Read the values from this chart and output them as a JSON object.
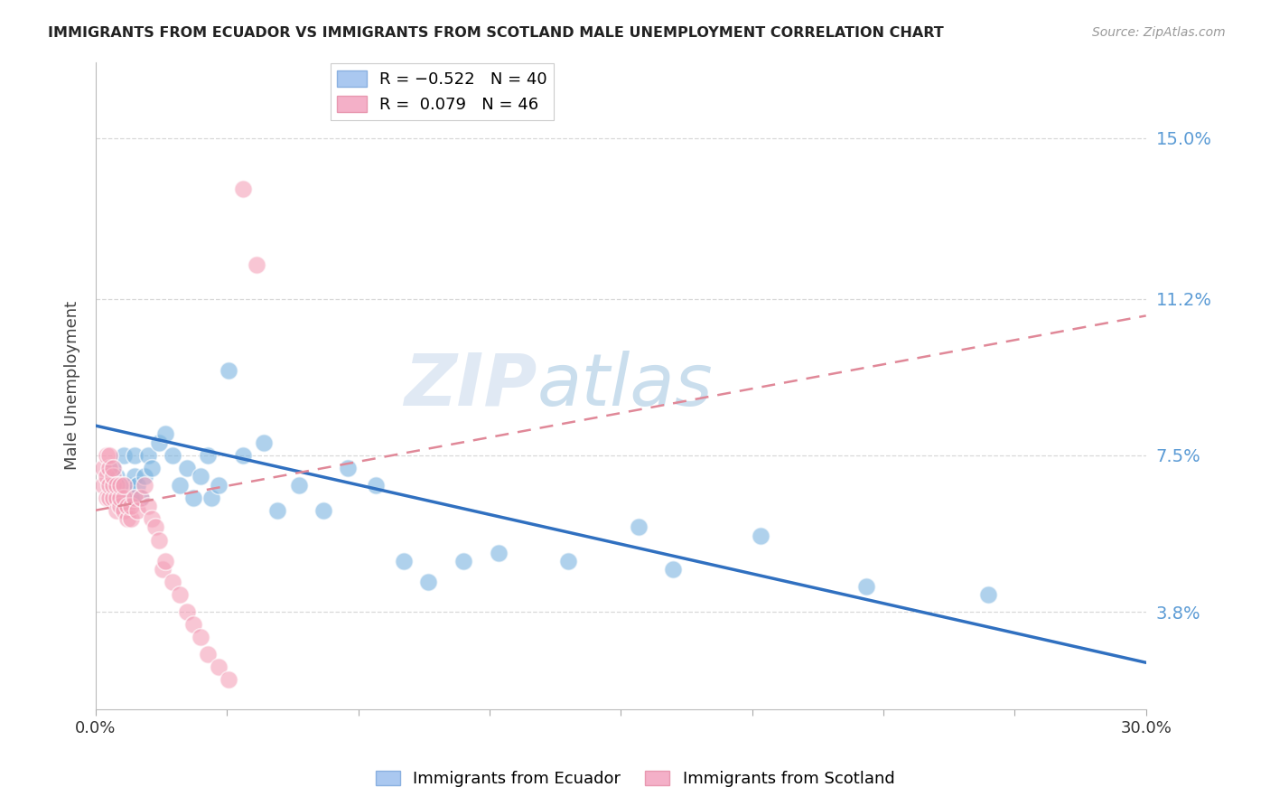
{
  "title": "IMMIGRANTS FROM ECUADOR VS IMMIGRANTS FROM SCOTLAND MALE UNEMPLOYMENT CORRELATION CHART",
  "source": "Source: ZipAtlas.com",
  "ylabel": "Male Unemployment",
  "ytick_labels": [
    "15.0%",
    "11.2%",
    "7.5%",
    "3.8%"
  ],
  "ytick_values": [
    0.15,
    0.112,
    0.075,
    0.038
  ],
  "xlim": [
    0.0,
    0.3
  ],
  "ylim": [
    0.015,
    0.168
  ],
  "ecuador_scatter_x": [
    0.005,
    0.006,
    0.008,
    0.009,
    0.01,
    0.011,
    0.011,
    0.012,
    0.013,
    0.014,
    0.015,
    0.016,
    0.018,
    0.02,
    0.022,
    0.024,
    0.026,
    0.028,
    0.03,
    0.032,
    0.033,
    0.035,
    0.038,
    0.042,
    0.048,
    0.052,
    0.058,
    0.065,
    0.072,
    0.08,
    0.088,
    0.095,
    0.105,
    0.115,
    0.135,
    0.155,
    0.165,
    0.19,
    0.22,
    0.255
  ],
  "ecuador_scatter_y": [
    0.072,
    0.07,
    0.075,
    0.068,
    0.065,
    0.07,
    0.075,
    0.068,
    0.065,
    0.07,
    0.075,
    0.072,
    0.078,
    0.08,
    0.075,
    0.068,
    0.072,
    0.065,
    0.07,
    0.075,
    0.065,
    0.068,
    0.095,
    0.075,
    0.078,
    0.062,
    0.068,
    0.062,
    0.072,
    0.068,
    0.05,
    0.045,
    0.05,
    0.052,
    0.05,
    0.058,
    0.048,
    0.056,
    0.044,
    0.042
  ],
  "scotland_scatter_x": [
    0.002,
    0.002,
    0.003,
    0.003,
    0.003,
    0.004,
    0.004,
    0.004,
    0.004,
    0.005,
    0.005,
    0.005,
    0.005,
    0.006,
    0.006,
    0.006,
    0.007,
    0.007,
    0.007,
    0.008,
    0.008,
    0.008,
    0.009,
    0.009,
    0.01,
    0.01,
    0.011,
    0.012,
    0.013,
    0.014,
    0.015,
    0.016,
    0.017,
    0.018,
    0.019,
    0.02,
    0.022,
    0.024,
    0.026,
    0.028,
    0.03,
    0.032,
    0.035,
    0.038,
    0.042,
    0.046
  ],
  "scotland_scatter_y": [
    0.068,
    0.072,
    0.065,
    0.07,
    0.075,
    0.065,
    0.068,
    0.072,
    0.075,
    0.065,
    0.068,
    0.07,
    0.072,
    0.062,
    0.065,
    0.068,
    0.063,
    0.065,
    0.068,
    0.062,
    0.065,
    0.068,
    0.06,
    0.063,
    0.06,
    0.063,
    0.065,
    0.062,
    0.065,
    0.068,
    0.063,
    0.06,
    0.058,
    0.055,
    0.048,
    0.05,
    0.045,
    0.042,
    0.038,
    0.035,
    0.032,
    0.028,
    0.025,
    0.022,
    0.138,
    0.12
  ],
  "ecuador_line_x": [
    0.0,
    0.3
  ],
  "ecuador_line_y": [
    0.082,
    0.026
  ],
  "scotland_line_x": [
    0.0,
    0.3
  ],
  "scotland_line_y": [
    0.062,
    0.108
  ],
  "ecuador_color": "#7ab3e0",
  "scotland_color": "#f4a0b8",
  "ecuador_line_color": "#3070c0",
  "scotland_line_color": "#e08898",
  "watermark_zip": "ZIP",
  "watermark_atlas": "atlas",
  "background_color": "#ffffff",
  "grid_color": "#d8d8d8",
  "xtick_positions": [
    0.0,
    0.0375,
    0.075,
    0.1125,
    0.15,
    0.1875,
    0.225,
    0.2625,
    0.3
  ],
  "xtick_left_label": "0.0%",
  "xtick_right_label": "30.0%"
}
